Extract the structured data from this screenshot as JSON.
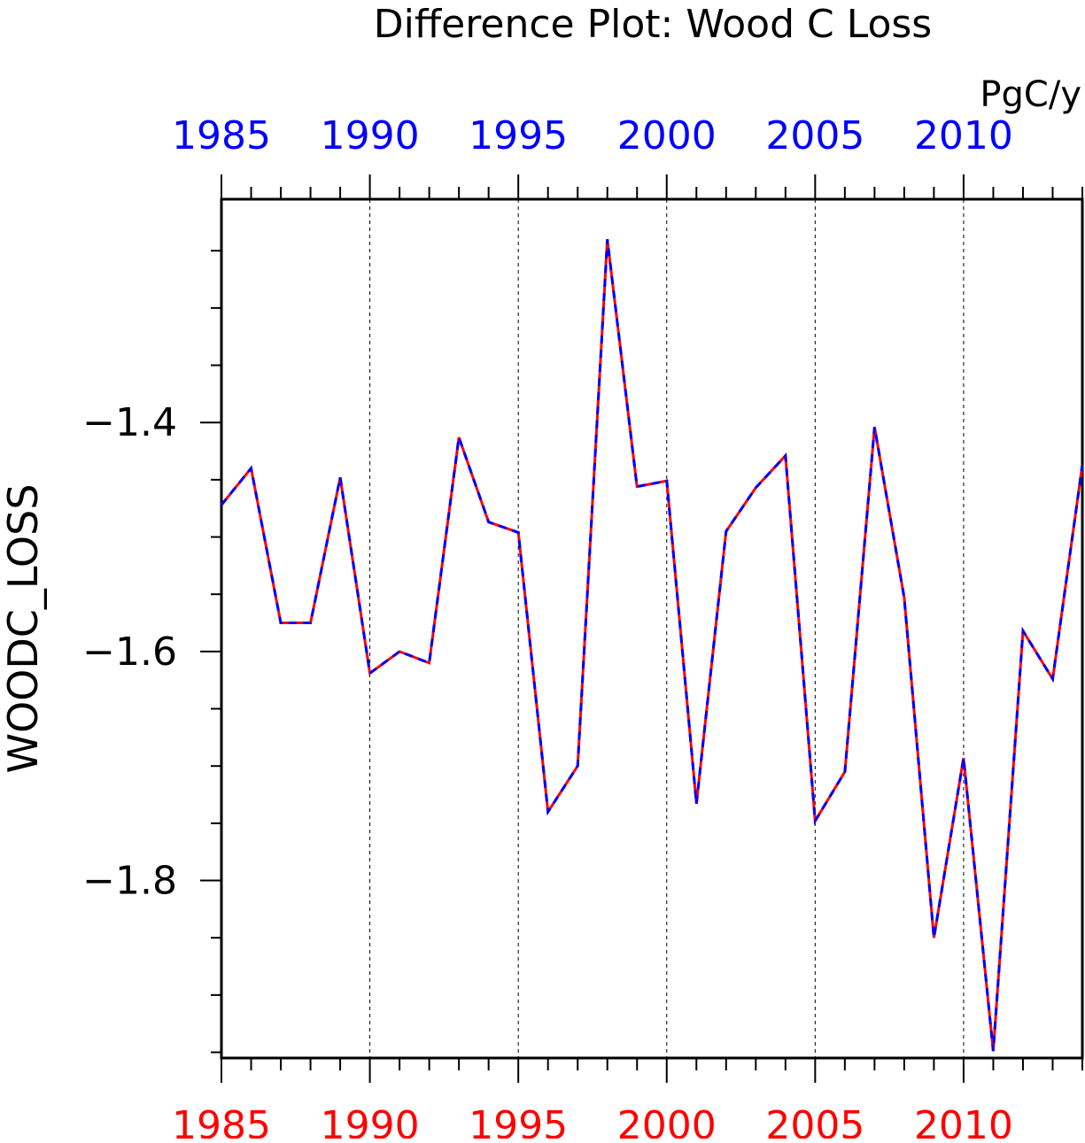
{
  "chart_data": {
    "type": "line",
    "title": "Difference Plot: Wood C Loss",
    "units": "PgC/y",
    "ylabel": "WOODC_LOSS",
    "xlabel": "",
    "xlim": [
      1985,
      2014
    ],
    "ylim": [
      -1.955,
      -1.205
    ],
    "x_ticks": [
      1985,
      1990,
      1995,
      2000,
      2005,
      2010
    ],
    "x_tick_labels": [
      "1985",
      "1990",
      "1995",
      "2000",
      "2005",
      "2010"
    ],
    "y_ticks": [
      -1.4,
      -1.6,
      -1.8
    ],
    "y_tick_labels": [
      "−1.4",
      "−1.6",
      "−1.8"
    ],
    "grid": "vertical dashed lines at major x ticks",
    "colors": {
      "top_axis_labels": "#0000ff",
      "bottom_axis_labels": "#ff0000",
      "series_a": "#ff0000",
      "series_b": "#0000ff",
      "axes": "#000000"
    },
    "x": [
      1985,
      1986,
      1987,
      1988,
      1989,
      1990,
      1991,
      1992,
      1993,
      1994,
      1995,
      1996,
      1997,
      1998,
      1999,
      2000,
      2001,
      2002,
      2003,
      2004,
      2005,
      2006,
      2007,
      2008,
      2009,
      2010,
      2011,
      2012,
      2013,
      2014
    ],
    "series": [
      {
        "line_style": "solid",
        "color": "#ff0000",
        "values": [
          -1.472,
          -1.44,
          -1.575,
          -1.575,
          -1.448,
          -1.619,
          -1.6,
          -1.61,
          -1.413,
          -1.487,
          -1.496,
          -1.74,
          -1.7,
          -1.24,
          -1.456,
          -1.451,
          -1.733,
          -1.495,
          -1.457,
          -1.429,
          -1.748,
          -1.705,
          -1.404,
          -1.553,
          -1.85,
          -1.693,
          -1.949,
          -1.582,
          -1.624,
          -1.437
        ]
      },
      {
        "line_style": "dashed",
        "color": "#0000ff",
        "values": [
          -1.472,
          -1.44,
          -1.575,
          -1.575,
          -1.448,
          -1.619,
          -1.6,
          -1.61,
          -1.413,
          -1.487,
          -1.496,
          -1.74,
          -1.7,
          -1.24,
          -1.456,
          -1.451,
          -1.733,
          -1.495,
          -1.457,
          -1.429,
          -1.748,
          -1.705,
          -1.404,
          -1.553,
          -1.85,
          -1.693,
          -1.949,
          -1.582,
          -1.624,
          -1.437
        ]
      }
    ]
  }
}
